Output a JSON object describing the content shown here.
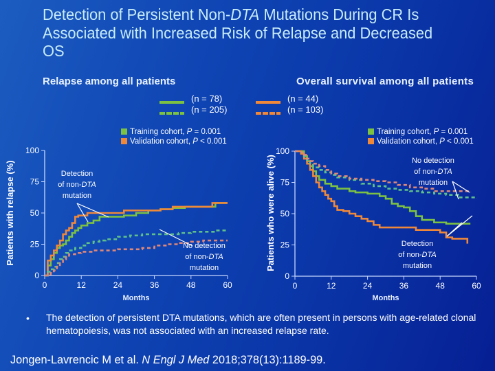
{
  "slide": {
    "title_parts": [
      "Detection of Persistent Non-",
      "DTA",
      " Mutations During CR Is Associated with Increased Risk of Relapse and Decreased OS"
    ],
    "left_subtitle": "Relapse among all patients",
    "right_subtitle": "Overall survival among all patients",
    "legend_relapse": [
      {
        "style": "solid",
        "color": "#7dc142",
        "label": "(n = 78)"
      },
      {
        "style": "dashed",
        "color": "#7dc142",
        "label": "(n = 205)"
      }
    ],
    "legend_os": [
      {
        "style": "solid",
        "color": "#f0883a",
        "label": "(n = 44)"
      },
      {
        "style": "dashed",
        "color": "#f0883a",
        "label": "(n = 103)"
      }
    ],
    "cohort_legend": {
      "training": {
        "label_pre": "Training cohort, ",
        "p_symbol": "P",
        "label_post": " = 0.001",
        "color": "#7dc142"
      },
      "validation": {
        "label_pre": "Validation cohort, ",
        "p_symbol": "P",
        "label_post": " < 0.001",
        "color": "#f0883a"
      }
    },
    "bullet": "The detection of persistent DTA mutations, which are often present in persons with age-related clonal hematopoiesis, was not associated with an increased relapse rate.",
    "citation": {
      "authors": "Jongen-Lavrencic M et al. ",
      "journal": "N Engl J Med",
      "ref": " 2018;378(13):1189-99."
    }
  },
  "colors": {
    "training": "#7dc142",
    "validation": "#f0883a",
    "training_dashed": "#5fc08a",
    "validation_dashed": "#e08878",
    "axis": "#c8d8ff"
  },
  "chart_data": [
    {
      "type": "line",
      "title": "Relapse among all patients",
      "xlabel": "Months",
      "ylabel": "Patients with relapse (%)",
      "xlim": [
        0,
        60
      ],
      "ylim": [
        0,
        100
      ],
      "xticks": [
        0,
        12,
        24,
        36,
        48,
        60
      ],
      "yticks": [
        0,
        25,
        50,
        75,
        100
      ],
      "annotations": [
        {
          "text_parts": [
            "Detection",
            "of non-",
            "DTA",
            "mutation"
          ]
        },
        {
          "text_parts": [
            "No detection",
            "of non-",
            "DTA",
            "mutation"
          ]
        }
      ],
      "series": [
        {
          "name": "Training, detection of non-DTA",
          "cohort": "training",
          "style": "solid",
          "x": [
            0,
            1,
            2,
            3,
            4,
            5,
            6,
            7,
            8,
            9,
            10,
            11,
            12,
            14,
            16,
            18,
            20,
            24,
            26,
            30,
            34,
            38,
            42,
            46,
            50,
            54,
            56,
            60
          ],
          "y": [
            0,
            8,
            13,
            18,
            22,
            24,
            25,
            28,
            31,
            34,
            36,
            38,
            40,
            42,
            44,
            47,
            47,
            47,
            48,
            50,
            52,
            53,
            54,
            55,
            55,
            55,
            58,
            58
          ]
        },
        {
          "name": "Validation, detection of non-DTA",
          "cohort": "validation",
          "style": "solid",
          "x": [
            0,
            1,
            2,
            3,
            4,
            5,
            6,
            7,
            8,
            9,
            10,
            11,
            12,
            14,
            18,
            22,
            24,
            26,
            30,
            34,
            38,
            42,
            46,
            50,
            54,
            55,
            56,
            60
          ],
          "y": [
            0,
            12,
            16,
            20,
            24,
            28,
            33,
            36,
            38,
            42,
            47,
            48,
            48,
            50,
            50,
            50,
            50,
            52,
            52,
            52,
            53,
            55,
            55,
            55,
            55,
            58,
            58,
            58
          ]
        },
        {
          "name": "Training, no detection of non-DTA",
          "cohort": "training",
          "style": "dashed",
          "x": [
            0,
            1,
            2,
            3,
            4,
            5,
            6,
            7,
            8,
            10,
            12,
            14,
            16,
            18,
            20,
            24,
            28,
            32,
            36,
            40,
            44,
            48,
            52,
            56,
            60
          ],
          "y": [
            0,
            3,
            5,
            7,
            10,
            13,
            15,
            18,
            20,
            22,
            24,
            26,
            27,
            28,
            29,
            31,
            32,
            33,
            33,
            33,
            34,
            35,
            35,
            36,
            36
          ]
        },
        {
          "name": "Validation, no detection of non-DTA",
          "cohort": "validation",
          "style": "dashed",
          "x": [
            0,
            1,
            2,
            3,
            4,
            5,
            6,
            7,
            8,
            10,
            12,
            16,
            20,
            24,
            28,
            32,
            36,
            40,
            44,
            48,
            52,
            56,
            60
          ],
          "y": [
            0,
            1,
            2,
            4,
            7,
            10,
            13,
            15,
            17,
            18,
            19,
            20,
            20,
            21,
            21,
            22,
            24,
            25,
            26,
            27,
            28,
            28,
            28
          ]
        }
      ]
    },
    {
      "type": "line",
      "title": "Overall survival among all patients",
      "xlabel": "Months",
      "ylabel": "Patients who were alive (%)",
      "xlim": [
        0,
        60
      ],
      "ylim": [
        0,
        100
      ],
      "xticks": [
        0,
        12,
        24,
        36,
        48,
        60
      ],
      "yticks": [
        0,
        25,
        50,
        75,
        100
      ],
      "annotations": [
        {
          "text_parts": [
            "No detection",
            "of non-",
            "DTA",
            "mutation"
          ]
        },
        {
          "text_parts": [
            "Detection",
            "of non-",
            "DTA",
            "mutation"
          ]
        }
      ],
      "series": [
        {
          "name": "Training, detection of non-DTA",
          "cohort": "training",
          "style": "solid",
          "x": [
            0,
            2,
            3,
            4,
            5,
            6,
            7,
            8,
            10,
            12,
            14,
            18,
            20,
            24,
            28,
            30,
            32,
            34,
            36,
            38,
            40,
            42,
            46,
            50,
            54,
            58
          ],
          "y": [
            100,
            100,
            96,
            92,
            88,
            84,
            80,
            77,
            74,
            72,
            70,
            68,
            67,
            66,
            64,
            62,
            58,
            56,
            55,
            52,
            48,
            45,
            43,
            42,
            42,
            42
          ]
        },
        {
          "name": "Validation, detection of non-DTA",
          "cohort": "validation",
          "style": "solid",
          "x": [
            0,
            2,
            3,
            4,
            5,
            6,
            7,
            8,
            9,
            10,
            11,
            12,
            13,
            14,
            16,
            18,
            20,
            22,
            24,
            26,
            28,
            32,
            36,
            40,
            44,
            48,
            50,
            52,
            56,
            57
          ],
          "y": [
            100,
            98,
            94,
            90,
            85,
            80,
            75,
            71,
            68,
            65,
            62,
            60,
            56,
            53,
            52,
            50,
            48,
            46,
            44,
            41,
            39,
            39,
            39,
            37,
            37,
            35,
            31,
            30,
            30,
            26
          ]
        },
        {
          "name": "Training, no detection of non-DTA",
          "cohort": "training",
          "style": "dashed",
          "x": [
            0,
            2,
            3,
            4,
            5,
            6,
            8,
            10,
            12,
            14,
            18,
            22,
            26,
            30,
            34,
            38,
            42,
            46,
            50,
            54,
            58,
            60
          ],
          "y": [
            100,
            99,
            96,
            92,
            89,
            87,
            85,
            83,
            81,
            79,
            77,
            74,
            72,
            70,
            69,
            68,
            67,
            66,
            65,
            63,
            63,
            62
          ]
        },
        {
          "name": "Validation, no detection of non-DTA",
          "cohort": "validation",
          "style": "dashed",
          "x": [
            0,
            2,
            3,
            4,
            5,
            6,
            8,
            10,
            12,
            14,
            18,
            22,
            26,
            30,
            34,
            38,
            42,
            46,
            50,
            54,
            58
          ],
          "y": [
            100,
            99,
            97,
            94,
            92,
            90,
            88,
            85,
            82,
            80,
            78,
            77,
            76,
            75,
            73,
            71,
            70,
            68,
            68,
            68,
            67
          ]
        }
      ]
    }
  ]
}
